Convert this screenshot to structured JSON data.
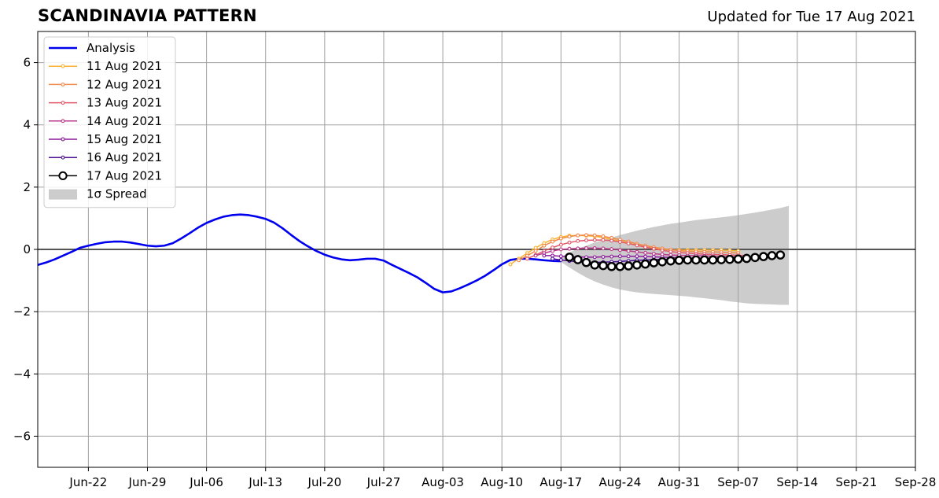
{
  "header": {
    "title": "SCANDINAVIA PATTERN",
    "updated": "Updated for Tue 17 Aug 2021"
  },
  "chart_data": {
    "type": "line",
    "title": "SCANDINAVIA PATTERN",
    "subtitle": "Updated for Tue 17 Aug 2021",
    "xlabel": "",
    "ylabel": "",
    "x_range": [
      "2021-06-16",
      "2021-09-28"
    ],
    "ylim": [
      -7,
      7
    ],
    "x_ticks": [
      "Jun-22",
      "Jun-29",
      "Jul-06",
      "Jul-13",
      "Jul-20",
      "Jul-27",
      "Aug-03",
      "Aug-10",
      "Aug-17",
      "Aug-24",
      "Aug-31",
      "Sep-07",
      "Sep-14",
      "Sep-21",
      "Sep-28"
    ],
    "y_ticks": [
      6,
      4,
      2,
      0,
      -2,
      -4,
      -6
    ],
    "y_tick_labels": [
      "6",
      "4",
      "2",
      "0",
      "−2",
      "−4",
      "−6"
    ],
    "grid": true,
    "legend_position": "upper left",
    "colors": {
      "analysis": "#0000ee",
      "spread": "#cccccc",
      "zero_line": "#555555"
    },
    "series": [
      {
        "name": "Analysis",
        "color": "#0000ee",
        "start": "2021-06-16",
        "values": [
          -0.5,
          -0.42,
          -0.32,
          -0.2,
          -0.08,
          0.05,
          0.12,
          0.18,
          0.23,
          0.25,
          0.25,
          0.22,
          0.17,
          0.12,
          0.1,
          0.12,
          0.2,
          0.35,
          0.52,
          0.7,
          0.85,
          0.96,
          1.05,
          1.1,
          1.12,
          1.1,
          1.05,
          0.98,
          0.86,
          0.68,
          0.47,
          0.27,
          0.1,
          -0.05,
          -0.17,
          -0.26,
          -0.32,
          -0.35,
          -0.33,
          -0.3,
          -0.3,
          -0.36,
          -0.5,
          -0.63,
          -0.76,
          -0.9,
          -1.08,
          -1.27,
          -1.38,
          -1.35,
          -1.25,
          -1.13,
          -1.0,
          -0.85,
          -0.67,
          -0.48,
          -0.34,
          -0.3,
          -0.3,
          -0.32,
          -0.35,
          -0.37,
          -0.38
        ]
      },
      {
        "name": "11 Aug 2021",
        "color": "#f9b233",
        "start": "2021-08-11",
        "values": [
          -0.48,
          -0.3,
          -0.12,
          0.05,
          0.2,
          0.32,
          0.4,
          0.44,
          0.45,
          0.44,
          0.42,
          0.38,
          0.32,
          0.26,
          0.2,
          0.14,
          0.08,
          0.03,
          0.0,
          -0.01,
          -0.02,
          -0.02,
          -0.02,
          -0.02,
          -0.02,
          -0.02,
          -0.03,
          -0.05
        ]
      },
      {
        "name": "12 Aug 2021",
        "color": "#f0884a",
        "start": "2021-08-12",
        "values": [
          -0.35,
          -0.2,
          -0.05,
          0.12,
          0.25,
          0.35,
          0.41,
          0.45,
          0.46,
          0.45,
          0.42,
          0.37,
          0.31,
          0.25,
          0.18,
          0.12,
          0.07,
          0.03,
          -0.01,
          -0.04,
          -0.06,
          -0.07,
          -0.08,
          -0.08,
          -0.09,
          -0.1,
          -0.12
        ]
      },
      {
        "name": "13 Aug 2021",
        "color": "#e2596a",
        "start": "2021-08-13",
        "values": [
          -0.3,
          -0.18,
          -0.05,
          0.06,
          0.15,
          0.22,
          0.27,
          0.29,
          0.3,
          0.3,
          0.28,
          0.24,
          0.19,
          0.13,
          0.07,
          0.02,
          -0.03,
          -0.07,
          -0.1,
          -0.12,
          -0.14,
          -0.15,
          -0.16,
          -0.17,
          -0.18,
          -0.19,
          -0.2
        ]
      },
      {
        "name": "14 Aug 2021",
        "color": "#bb3a8b",
        "start": "2021-08-14",
        "values": [
          -0.2,
          -0.12,
          -0.05,
          0.0,
          0.02,
          0.03,
          0.04,
          0.04,
          0.03,
          0.01,
          -0.02,
          -0.05,
          -0.08,
          -0.11,
          -0.14,
          -0.16,
          -0.18,
          -0.19,
          -0.2,
          -0.2,
          -0.21,
          -0.22,
          -0.23,
          -0.24,
          -0.25
        ]
      },
      {
        "name": "15 Aug 2021",
        "color": "#8b1a9b",
        "start": "2021-08-15",
        "values": [
          -0.2,
          -0.2,
          -0.22,
          -0.23,
          -0.24,
          -0.25,
          -0.25,
          -0.24,
          -0.23,
          -0.22,
          -0.22,
          -0.22,
          -0.23,
          -0.24,
          -0.25,
          -0.26,
          -0.27,
          -0.28,
          -0.28,
          -0.29,
          -0.29,
          -0.3,
          -0.3,
          -0.3
        ]
      },
      {
        "name": "16 Aug 2021",
        "color": "#4b0c96",
        "start": "2021-08-16",
        "values": [
          -0.3,
          -0.34,
          -0.37,
          -0.4,
          -0.42,
          -0.42,
          -0.41,
          -0.4,
          -0.39,
          -0.37,
          -0.35,
          -0.34,
          -0.33,
          -0.32,
          -0.32,
          -0.31,
          -0.31,
          -0.3,
          -0.3,
          -0.3,
          -0.29,
          -0.29
        ]
      },
      {
        "name": "17 Aug 2021",
        "color": "#000000",
        "start": "2021-08-18",
        "values": [
          -0.25,
          -0.33,
          -0.42,
          -0.5,
          -0.52,
          -0.55,
          -0.55,
          -0.53,
          -0.5,
          -0.47,
          -0.43,
          -0.4,
          -0.37,
          -0.35,
          -0.34,
          -0.34,
          -0.34,
          -0.34,
          -0.33,
          -0.32,
          -0.31,
          -0.29,
          -0.26,
          -0.23,
          -0.2,
          -0.18
        ]
      }
    ],
    "spread": {
      "name": "1σ Spread",
      "color": "#cccccc",
      "start": "2021-08-17",
      "upper": [
        -0.25,
        -0.1,
        0.02,
        0.12,
        0.22,
        0.3,
        0.38,
        0.46,
        0.53,
        0.6,
        0.66,
        0.72,
        0.77,
        0.82,
        0.86,
        0.9,
        0.94,
        0.97,
        1.0,
        1.03,
        1.06,
        1.1,
        1.14,
        1.18,
        1.23,
        1.28,
        1.33,
        1.4
      ],
      "lower": [
        -0.4,
        -0.58,
        -0.75,
        -0.9,
        -1.03,
        -1.13,
        -1.22,
        -1.29,
        -1.34,
        -1.38,
        -1.41,
        -1.43,
        -1.45,
        -1.47,
        -1.49,
        -1.51,
        -1.54,
        -1.57,
        -1.6,
        -1.63,
        -1.67,
        -1.7,
        -1.73,
        -1.75,
        -1.76,
        -1.77,
        -1.78,
        -1.78
      ]
    }
  }
}
